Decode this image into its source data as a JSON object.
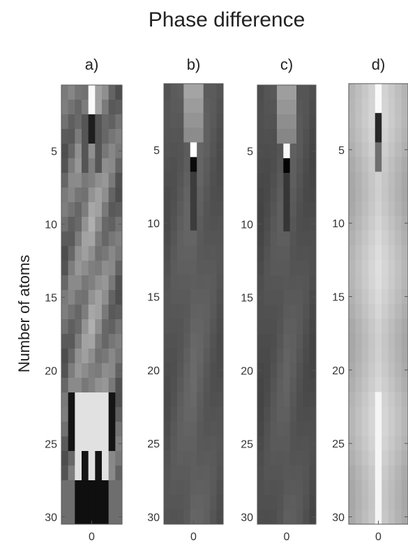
{
  "title": "Phase difference",
  "ylabel": "Number of atoms",
  "colors": {
    "background": "#ffffff",
    "text": "#222222",
    "axis": "#555555"
  },
  "chart_data": [
    {
      "type": "heatmap",
      "panel_label": "a)",
      "y_range": [
        1,
        30
      ],
      "yticks": [
        "5",
        "10",
        "15",
        "20",
        "25",
        "30"
      ],
      "xticks": [
        "0"
      ],
      "colormap": "gray",
      "peak_row": 2,
      "pattern": "high contrast, dark and bright streaks near the bottom"
    },
    {
      "type": "heatmap",
      "panel_label": "b)",
      "y_range": [
        1,
        30
      ],
      "yticks": [
        "5",
        "10",
        "15",
        "20",
        "25",
        "30"
      ],
      "xticks": [
        "0"
      ],
      "colormap": "gray",
      "peak_row": 5,
      "pattern": "mostly dark gray, bright peak near the top"
    },
    {
      "type": "heatmap",
      "panel_label": "c)",
      "y_range": [
        1,
        30
      ],
      "yticks": [
        "5",
        "10",
        "15",
        "20",
        "25",
        "30"
      ],
      "xticks": [
        "0"
      ],
      "colormap": "gray",
      "peak_row": 5,
      "pattern": "mostly dark gray, bright peak near the top"
    },
    {
      "type": "heatmap",
      "panel_label": "d)",
      "y_range": [
        1,
        30
      ],
      "yticks": [
        "5",
        "10",
        "15",
        "20",
        "25",
        "30"
      ],
      "xticks": [
        "0"
      ],
      "colormap": "gray",
      "peak_row": 2,
      "pattern": "light gray, bright central column"
    }
  ]
}
